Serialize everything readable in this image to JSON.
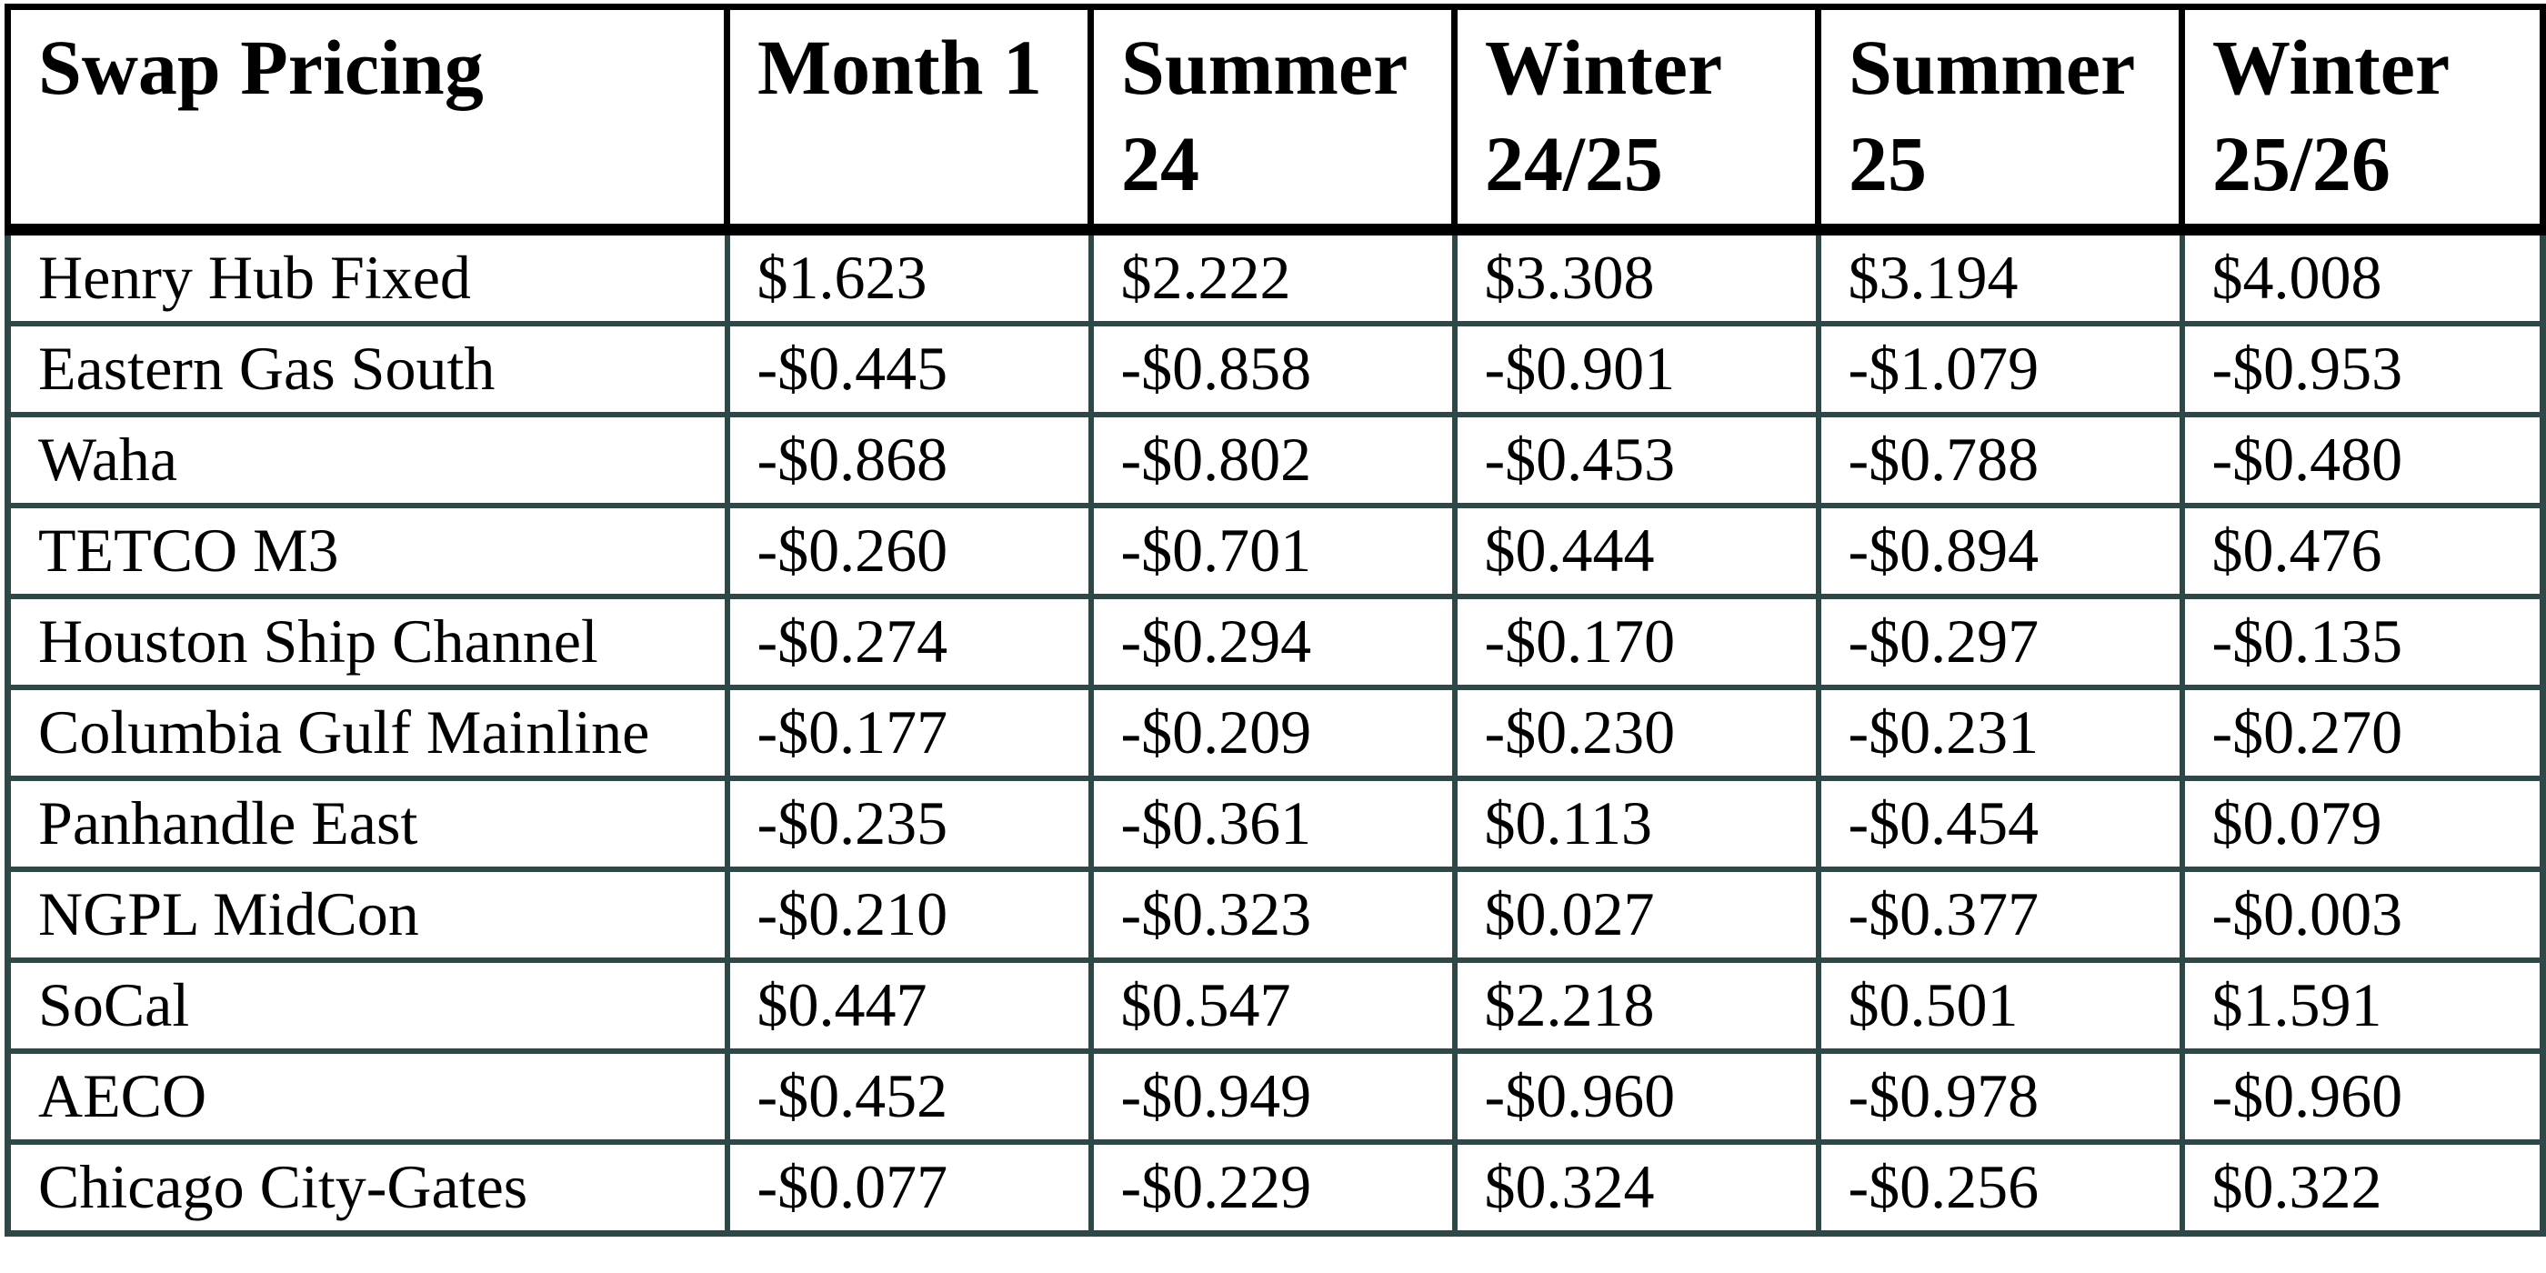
{
  "table": {
    "title_header": "Swap Pricing",
    "column_headers": [
      "Month 1",
      "Summer 24",
      "Winter 24/25",
      "Summer 25",
      "Winter 25/26"
    ],
    "rows": [
      {
        "label": "Henry Hub Fixed",
        "values": [
          "$1.623",
          "$2.222",
          "$3.308",
          "$3.194",
          "$4.008"
        ]
      },
      {
        "label": "Eastern Gas South",
        "values": [
          "-$0.445",
          "-$0.858",
          "-$0.901",
          "-$1.079",
          "-$0.953"
        ]
      },
      {
        "label": "Waha",
        "values": [
          "-$0.868",
          "-$0.802",
          "-$0.453",
          "-$0.788",
          "-$0.480"
        ]
      },
      {
        "label": "TETCO M3",
        "values": [
          "-$0.260",
          "-$0.701",
          "$0.444",
          "-$0.894",
          "$0.476"
        ]
      },
      {
        "label": "Houston Ship Channel",
        "values": [
          "-$0.274",
          "-$0.294",
          "-$0.170",
          "-$0.297",
          "-$0.135"
        ]
      },
      {
        "label": "Columbia Gulf Mainline",
        "values": [
          "-$0.177",
          "-$0.209",
          "-$0.230",
          "-$0.231",
          "-$0.270"
        ]
      },
      {
        "label": "Panhandle East",
        "values": [
          "-$0.235",
          "-$0.361",
          "$0.113",
          "-$0.454",
          "$0.079"
        ]
      },
      {
        "label": "NGPL MidCon",
        "values": [
          "-$0.210",
          "-$0.323",
          "$0.027",
          "-$0.377",
          "-$0.003"
        ]
      },
      {
        "label": "SoCal",
        "values": [
          "$0.447",
          "$0.547",
          "$2.218",
          "$0.501",
          "$1.591"
        ]
      },
      {
        "label": "AECO",
        "values": [
          "-$0.452",
          "-$0.949",
          "-$0.960",
          "-$0.978",
          "-$0.960"
        ]
      },
      {
        "label": "Chicago City-Gates",
        "values": [
          "-$0.077",
          "-$0.229",
          "$0.324",
          "-$0.256",
          "$0.322"
        ]
      }
    ]
  },
  "colors": {
    "header_border": "#000000",
    "body_border": "#2e4747",
    "text": "#000000",
    "background": "#ffffff"
  }
}
